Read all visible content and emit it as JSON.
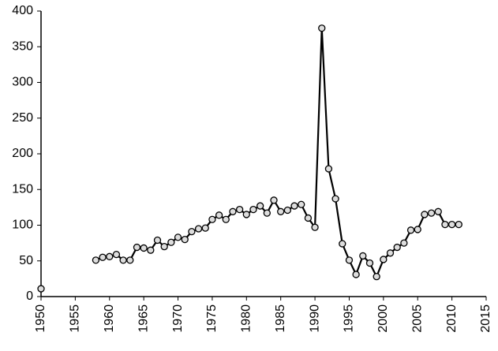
{
  "chart_data": {
    "type": "line",
    "x": [
      1950,
      1951,
      1952,
      1953,
      1954,
      1955,
      1956,
      1957,
      1958,
      1959,
      1960,
      1961,
      1962,
      1963,
      1964,
      1965,
      1966,
      1967,
      1968,
      1969,
      1970,
      1971,
      1972,
      1973,
      1974,
      1975,
      1976,
      1977,
      1978,
      1979,
      1980,
      1981,
      1982,
      1983,
      1984,
      1985,
      1986,
      1987,
      1988,
      1989,
      1990,
      1991,
      1992,
      1993,
      1994,
      1995,
      1996,
      1997,
      1998,
      1999,
      2000,
      2001,
      2002,
      2003,
      2004,
      2005,
      2006,
      2007,
      2008,
      2009,
      2010,
      2011
    ],
    "values": [
      11,
      null,
      null,
      null,
      null,
      null,
      null,
      null,
      51,
      55,
      56,
      59,
      51,
      51,
      69,
      68,
      65,
      79,
      70,
      76,
      83,
      80,
      91,
      95,
      96,
      108,
      114,
      108,
      119,
      122,
      115,
      122,
      127,
      117,
      135,
      119,
      121,
      127,
      129,
      110,
      97,
      376,
      179,
      137,
      74,
      51,
      31,
      57,
      47,
      28,
      52,
      61,
      69,
      75,
      93,
      94,
      115,
      117,
      119,
      101,
      101,
      101
    ],
    "color": "#000000",
    "xlim": [
      1950,
      2015
    ],
    "xticks": [
      1950,
      1955,
      1960,
      1965,
      1970,
      1975,
      1980,
      1985,
      1990,
      1995,
      2000,
      2005,
      2010,
      2015
    ],
    "ylim": [
      0,
      400
    ],
    "yticks": [
      0,
      50,
      100,
      150,
      200,
      250,
      300,
      350,
      400
    ],
    "grid": false
  }
}
